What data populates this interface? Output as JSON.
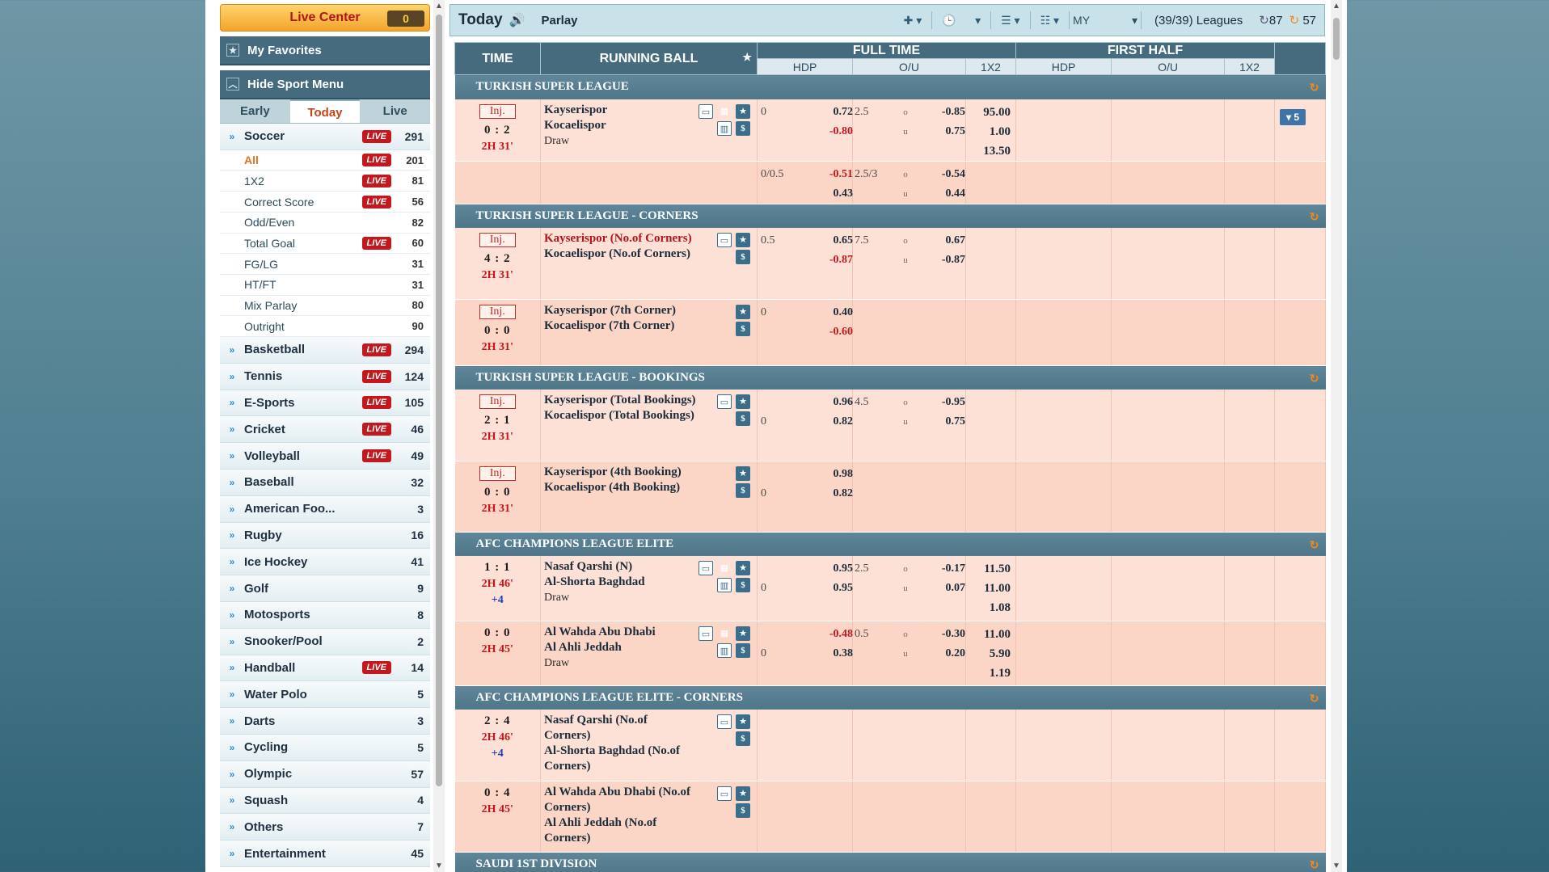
{
  "sidebar": {
    "live_center": {
      "label": "Live Center",
      "count": "0"
    },
    "favorites": "My Favorites",
    "hide_menu": "Hide Sport Menu",
    "tabs": [
      {
        "label": "Early"
      },
      {
        "label": "Today"
      },
      {
        "label": "Live"
      }
    ],
    "soccer": {
      "name": "Soccer",
      "live": "LIVE",
      "count": "291"
    },
    "soccer_sub": [
      {
        "name": "All",
        "live": "LIVE",
        "count": "201"
      },
      {
        "name": "1X2",
        "live": "LIVE",
        "count": "81"
      },
      {
        "name": "Correct Score",
        "live": "LIVE",
        "count": "56"
      },
      {
        "name": "Odd/Even",
        "live": "",
        "count": "82"
      },
      {
        "name": "Total Goal",
        "live": "LIVE",
        "count": "60"
      },
      {
        "name": "FG/LG",
        "live": "",
        "count": "31"
      },
      {
        "name": "HT/FT",
        "live": "",
        "count": "31"
      },
      {
        "name": "Mix Parlay",
        "live": "",
        "count": "80"
      },
      {
        "name": "Outright",
        "live": "",
        "count": "90"
      }
    ],
    "sports": [
      {
        "name": "Basketball",
        "live": "LIVE",
        "count": "294"
      },
      {
        "name": "Tennis",
        "live": "LIVE",
        "count": "124"
      },
      {
        "name": "E-Sports",
        "live": "LIVE",
        "count": "105"
      },
      {
        "name": "Cricket",
        "live": "LIVE",
        "count": "46"
      },
      {
        "name": "Volleyball",
        "live": "LIVE",
        "count": "49"
      },
      {
        "name": "Baseball",
        "live": "",
        "count": "32"
      },
      {
        "name": "American Foo...",
        "live": "",
        "count": "3"
      },
      {
        "name": "Rugby",
        "live": "",
        "count": "16"
      },
      {
        "name": "Ice Hockey",
        "live": "",
        "count": "41"
      },
      {
        "name": "Golf",
        "live": "",
        "count": "9"
      },
      {
        "name": "Motosports",
        "live": "",
        "count": "8"
      },
      {
        "name": "Snooker/Pool",
        "live": "",
        "count": "2"
      },
      {
        "name": "Handball",
        "live": "LIVE",
        "count": "14"
      },
      {
        "name": "Water Polo",
        "live": "",
        "count": "5"
      },
      {
        "name": "Darts",
        "live": "",
        "count": "3"
      },
      {
        "name": "Cycling",
        "live": "",
        "count": "5"
      },
      {
        "name": "Olympic",
        "live": "",
        "count": "57"
      },
      {
        "name": "Squash",
        "live": "",
        "count": "4"
      },
      {
        "name": "Others",
        "live": "",
        "count": "7"
      },
      {
        "name": "Entertainment",
        "live": "",
        "count": "45"
      }
    ]
  },
  "topbar": {
    "title": "Today",
    "parlay": "Parlay",
    "odds_type": "MY",
    "leagues": "(39/39) Leagues",
    "refresh_a": "87",
    "refresh_b": "57"
  },
  "headers": {
    "time": "TIME",
    "running": "RUNNING BALL",
    "full_time": "FULL TIME",
    "first_half": "FIRST HALF",
    "hdp": "HDP",
    "ou": "O/U",
    "x12": "1X2"
  },
  "leagues": [
    {
      "name": "TURKISH SUPER LEAGUE",
      "matches": [
        {
          "inj": "Inj.",
          "score": "0 : 2",
          "clock": "2H 31'",
          "plus": "",
          "teams": [
            "Kayserispor",
            "Kocaelispor"
          ],
          "fav": [
            false,
            false
          ],
          "draw": "Draw",
          "icons": [
            "tv",
            "stat2",
            "star",
            "blank",
            "stat",
            "dollar"
          ],
          "hdp": [
            [
              "0",
              "0.72"
            ],
            [
              "",
              "-0.80"
            ]
          ],
          "ou": [
            [
              "2.5",
              "o",
              "-0.85"
            ],
            [
              "",
              "u",
              "0.75"
            ]
          ],
          "x12": [
            "95.00",
            "1.00",
            "13.50"
          ],
          "more": "▾ 5",
          "h": 70
        },
        {
          "inj": "",
          "score": "",
          "clock": "",
          "plus": "",
          "teams": [],
          "fav": [],
          "draw": "",
          "icons": [],
          "hdp": [
            [
              "0/0.5",
              "-0.51"
            ],
            [
              "",
              "0.43"
            ]
          ],
          "ou": [
            [
              "2.5/3",
              "o",
              "-0.54"
            ],
            [
              "",
              "u",
              "0.44"
            ]
          ],
          "x12": [],
          "more": "",
          "h": 40
        }
      ]
    },
    {
      "name": "TURKISH SUPER LEAGUE - CORNERS",
      "matches": [
        {
          "inj": "Inj.",
          "score": "4 : 2",
          "clock": "2H 31'",
          "plus": "",
          "teams": [
            "Kayserispor (No.of Corners)",
            "Kocaelispor (No.of Corners)"
          ],
          "fav": [
            true,
            false
          ],
          "draw": "",
          "icons": [
            "blank",
            "tv",
            "star",
            "blank",
            "blank",
            "dollar"
          ],
          "hdp": [
            [
              "0.5",
              "0.65"
            ],
            [
              "",
              "-0.87"
            ]
          ],
          "ou": [
            [
              "7.5",
              "o",
              "0.67"
            ],
            [
              "",
              "u",
              "-0.87"
            ]
          ],
          "x12": [],
          "more": "",
          "h": 88
        },
        {
          "inj": "Inj.",
          "score": "0 : 0",
          "clock": "2H 31'",
          "plus": "",
          "teams": [
            "Kayserispor (7th Corner)",
            "Kocaelispor (7th Corner)"
          ],
          "fav": [
            false,
            false
          ],
          "draw": "",
          "icons": [
            "blank",
            "blank",
            "star",
            "blank",
            "blank",
            "dollar"
          ],
          "hdp": [
            [
              "0",
              "0.40"
            ],
            [
              "",
              "-0.60"
            ]
          ],
          "ou": [],
          "x12": [],
          "more": "",
          "h": 82
        }
      ]
    },
    {
      "name": "TURKISH SUPER LEAGUE - BOOKINGS",
      "matches": [
        {
          "inj": "Inj.",
          "score": "2 : 1",
          "clock": "2H 31'",
          "plus": "",
          "teams": [
            "Kayserispor (Total Bookings)",
            "Kocaelispor (Total Bookings)"
          ],
          "fav": [
            false,
            false
          ],
          "draw": "",
          "icons": [
            "blank",
            "tv",
            "star",
            "blank",
            "blank",
            "dollar"
          ],
          "hdp": [
            [
              "",
              "0.96"
            ],
            [
              "0",
              "0.82"
            ]
          ],
          "ou": [
            [
              "4.5",
              "o",
              "-0.95"
            ],
            [
              "",
              "u",
              "0.75"
            ]
          ],
          "x12": [],
          "more": "",
          "h": 88
        },
        {
          "inj": "Inj.",
          "score": "0 : 0",
          "clock": "2H 31'",
          "plus": "",
          "teams": [
            "Kayserispor (4th Booking)",
            "Kocaelispor (4th Booking)"
          ],
          "fav": [
            false,
            false
          ],
          "draw": "",
          "icons": [
            "blank",
            "blank",
            "star",
            "blank",
            "blank",
            "dollar"
          ],
          "hdp": [
            [
              "",
              "0.98"
            ],
            [
              "0",
              "0.82"
            ]
          ],
          "ou": [],
          "x12": [],
          "more": "",
          "h": 88
        }
      ]
    },
    {
      "name": "AFC CHAMPIONS LEAGUE ELITE",
      "matches": [
        {
          "inj": "",
          "score": "1 : 1",
          "clock": "2H 46'",
          "plus": "+4",
          "teams": [
            "Nasaf Qarshi (N)",
            "Al-Shorta Baghdad"
          ],
          "fav": [
            false,
            false
          ],
          "draw": "Draw",
          "icons": [
            "tv",
            "stat2",
            "star",
            "blank",
            "stat",
            "dollar"
          ],
          "hdp": [
            [
              "",
              "0.95"
            ],
            [
              "0",
              "0.95"
            ]
          ],
          "ou": [
            [
              "2.5",
              "o",
              "-0.17"
            ],
            [
              "",
              "u",
              "0.07"
            ]
          ],
          "x12": [
            "11.50",
            "11.00",
            "1.08"
          ],
          "more": "",
          "h": 80
        },
        {
          "inj": "",
          "score": "0 : 0",
          "clock": "2H 45'",
          "plus": "",
          "teams": [
            "Al Wahda Abu Dhabi",
            "Al Ahli Jeddah"
          ],
          "fav": [
            false,
            false
          ],
          "draw": "Draw",
          "icons": [
            "tv",
            "stat2",
            "star",
            "blank",
            "stat",
            "dollar"
          ],
          "hdp": [
            [
              "",
              "-0.48"
            ],
            [
              "0",
              "0.38"
            ]
          ],
          "ou": [
            [
              "0.5",
              "o",
              "-0.30"
            ],
            [
              "",
              "u",
              "0.20"
            ]
          ],
          "x12": [
            "11.00",
            "5.90",
            "1.19"
          ],
          "more": "",
          "h": 80
        }
      ]
    },
    {
      "name": "AFC CHAMPIONS LEAGUE ELITE - CORNERS",
      "matches": [
        {
          "inj": "",
          "score": "2 : 4",
          "clock": "2H 46'",
          "plus": "+4",
          "teams": [
            "Nasaf Qarshi (No.of Corners)",
            "Al-Shorta Baghdad (No.of Corners)"
          ],
          "fav": [
            false,
            false
          ],
          "draw": "",
          "icons": [
            "blank",
            "tv",
            "star",
            "blank",
            "blank",
            "dollar"
          ],
          "hdp": [],
          "ou": [],
          "x12": [],
          "more": "",
          "h": 88
        },
        {
          "inj": "",
          "score": "0 : 4",
          "clock": "2H 45'",
          "plus": "",
          "teams": [
            "Al Wahda Abu Dhabi (No.of Corners)",
            "Al Ahli Jeddah (No.of Corners)"
          ],
          "fav": [
            false,
            false
          ],
          "draw": "",
          "icons": [
            "blank",
            "tv",
            "star",
            "blank",
            "blank",
            "dollar"
          ],
          "hdp": [],
          "ou": [],
          "x12": [],
          "more": "",
          "h": 88
        }
      ]
    },
    {
      "name": "SAUDI 1ST DIVISION",
      "matches": []
    }
  ]
}
